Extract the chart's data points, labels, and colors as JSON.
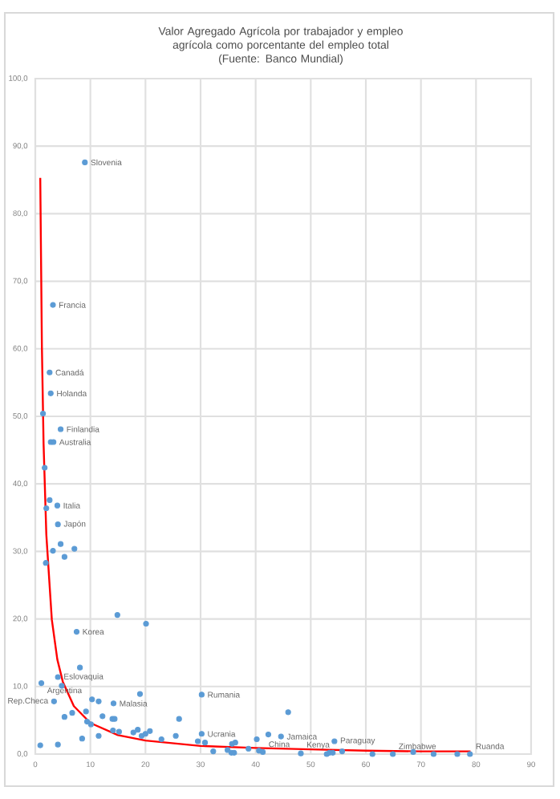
{
  "chart_data": {
    "type": "scatter",
    "title": "Valor Agregado Agrícola por trabajador y empleo agrícola como porcentante del empleo total",
    "subtitle": "(Fuente: Banco Mundial)",
    "xlim": [
      0,
      90
    ],
    "ylim": [
      0,
      100
    ],
    "xticks": [
      0,
      10,
      20,
      30,
      40,
      50,
      60,
      70,
      80,
      90
    ],
    "yticks": [
      {
        "value": 0,
        "label": "0,0"
      },
      {
        "value": 10,
        "label": "10,0"
      },
      {
        "value": 20,
        "label": "20,0"
      },
      {
        "value": 30,
        "label": "30,0"
      },
      {
        "value": 40,
        "label": "40,0"
      },
      {
        "value": 50,
        "label": "50,0"
      },
      {
        "value": 60,
        "label": "60,0"
      },
      {
        "value": 70,
        "label": "70,0"
      },
      {
        "value": 80,
        "label": "80,0"
      },
      {
        "value": 90,
        "label": "90,0"
      },
      {
        "value": 100,
        "label": "100,0"
      }
    ],
    "grid": true,
    "series": [
      {
        "color": "#5b9bd5",
        "marker": "circle",
        "x": [
          9.0,
          3.2,
          2.6,
          2.8,
          1.4,
          4.6,
          2.8,
          3.3,
          1.7,
          2.6,
          2.0,
          4.0,
          4.1,
          4.6,
          3.2,
          7.1,
          5.3,
          1.9,
          14.9,
          20.1,
          7.5,
          8.1,
          4.1,
          1.1,
          4.8,
          19.0,
          3.4,
          10.3,
          11.5,
          14.2,
          6.7,
          9.2,
          5.3,
          12.2,
          14.0,
          14.4,
          9.4,
          10.1,
          26.1,
          14.1,
          15.2,
          8.5,
          11.5,
          0.9,
          4.1,
          17.8,
          18.6,
          19.3,
          20.0,
          20.8,
          30.2,
          45.9,
          30.2,
          25.5,
          22.9,
          29.5,
          30.8,
          32.3,
          34.9,
          35.6,
          36.1,
          35.7,
          36.3,
          38.7,
          40.2,
          42.3,
          44.6,
          40.6,
          41.3,
          48.2,
          52.9,
          53.4,
          54.0,
          54.3,
          55.7,
          61.2,
          64.9,
          68.6,
          72.3,
          76.6,
          78.9
        ],
        "values": [
          87.6,
          66.5,
          56.5,
          53.4,
          50.4,
          48.1,
          46.2,
          46.2,
          42.4,
          37.6,
          36.4,
          36.8,
          34.0,
          31.1,
          30.1,
          30.4,
          29.2,
          28.3,
          20.6,
          19.3,
          18.1,
          12.8,
          11.4,
          10.5,
          10.1,
          8.9,
          7.8,
          8.1,
          7.8,
          7.5,
          6.1,
          6.3,
          5.5,
          5.6,
          5.2,
          5.2,
          4.8,
          4.4,
          5.2,
          3.5,
          3.3,
          2.3,
          2.7,
          1.3,
          1.4,
          3.2,
          3.6,
          2.7,
          3.0,
          3.4,
          8.8,
          6.2,
          3.0,
          2.7,
          2.2,
          1.9,
          1.7,
          0.4,
          0.6,
          0.2,
          0.2,
          1.5,
          1.7,
          0.8,
          2.2,
          2.9,
          2.6,
          0.5,
          0.3,
          0.1,
          0.0,
          0.2,
          0.2,
          1.9,
          0.4,
          0.0,
          0.0,
          0.3,
          0.0,
          0.0,
          0.0
        ]
      },
      {
        "type": "line",
        "marker": "none",
        "color": "#ff0000",
        "x": [
          0.9,
          1.2,
          1.5,
          2,
          3,
          4,
          5,
          7,
          10,
          15,
          20,
          30,
          40,
          50,
          60,
          70,
          79
        ],
        "values": [
          85.3,
          60.2,
          46.0,
          32.5,
          19.9,
          14.0,
          10.7,
          7.1,
          4.6,
          2.8,
          2.0,
          1.2,
          0.9,
          0.7,
          0.5,
          0.4,
          0.4
        ]
      }
    ],
    "annotations": [
      {
        "text": "Slovenia",
        "x": 9.0,
        "y": 87.6
      },
      {
        "text": "Francia",
        "x": 3.2,
        "y": 66.5
      },
      {
        "text": "Canadá",
        "x": 2.6,
        "y": 56.5
      },
      {
        "text": "Holanda",
        "x": 2.8,
        "y": 53.4
      },
      {
        "text": "Finlandia",
        "x": 4.6,
        "y": 48.1
      },
      {
        "text": "Australia",
        "x": 3.3,
        "y": 46.2
      },
      {
        "text": "Italia",
        "x": 4.0,
        "y": 36.8
      },
      {
        "text": "Japón",
        "x": 4.1,
        "y": 34.0
      },
      {
        "text": "Korea",
        "x": 7.5,
        "y": 18.1
      },
      {
        "text": "Eslovaquia",
        "x": 4.1,
        "y": 11.4
      },
      {
        "text": "Argentina",
        "x": 1.1,
        "y": 10.5
      },
      {
        "text": "Rep.Checa",
        "x": 3.4,
        "y": 7.8
      },
      {
        "text": "Malasia",
        "x": 14.2,
        "y": 7.5
      },
      {
        "text": "Rumania",
        "x": 30.2,
        "y": 8.8
      },
      {
        "text": "Ucrania",
        "x": 30.2,
        "y": 3.0
      },
      {
        "text": "Jamaica",
        "x": 44.6,
        "y": 2.6
      },
      {
        "text": "China",
        "x": 41.3,
        "y": 0.3
      },
      {
        "text": "Kenya",
        "x": 48.2,
        "y": 0.1
      },
      {
        "text": "Paraguay",
        "x": 54.3,
        "y": 1.9
      },
      {
        "text": "Zimbabwe",
        "x": 64.9,
        "y": 0.0
      },
      {
        "text": "Ruanda",
        "x": 78.9,
        "y": 0.0
      }
    ]
  }
}
